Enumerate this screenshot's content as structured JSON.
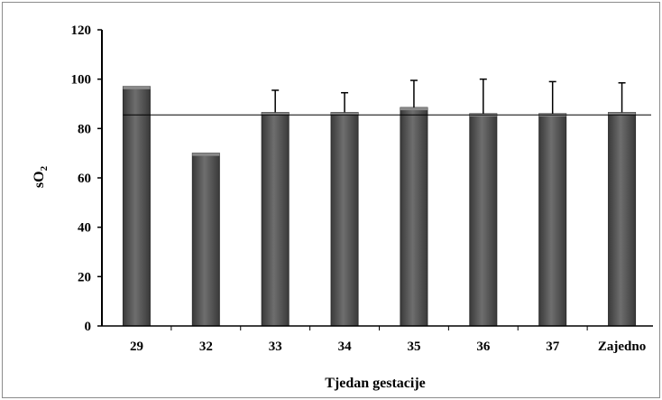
{
  "chart_data": {
    "type": "bar",
    "title": "",
    "xlabel": "Tjedan gestacije",
    "ylabel_main": "sO",
    "ylabel_sub": "2",
    "categories": [
      "29",
      "32",
      "33",
      "34",
      "35",
      "36",
      "37",
      "Zajedno"
    ],
    "values": [
      97,
      70,
      86.5,
      86.5,
      88.5,
      86,
      86,
      86.5
    ],
    "error_upper": [
      null,
      null,
      95.5,
      94.5,
      99.5,
      100,
      99,
      98.5
    ],
    "ylim": [
      0,
      120
    ],
    "yticks": [
      0,
      20,
      40,
      60,
      80,
      100,
      120
    ],
    "reference_line": 85.5,
    "bar_color": "#595959",
    "grid": false,
    "legend": "none"
  }
}
